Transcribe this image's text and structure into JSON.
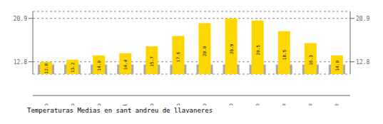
{
  "chart_data": {
    "type": "bar",
    "title": "Temperaturas Medias en sant andreu de llavaneres",
    "categories": [
      "Enero",
      "Febrero",
      "Marzo",
      "Abril",
      "Mayo",
      "Junio",
      "Julio",
      "Agosto",
      "Septiembre",
      "Octubre",
      "Noviembre",
      "Diciembre"
    ],
    "series": [
      {
        "color": "#AAAAAA",
        "values": [
          12.3,
          12.3,
          12.3,
          12.3,
          12.3,
          12.3,
          12.3,
          12.3,
          12.3,
          12.3,
          12.3,
          12.3
        ]
      },
      {
        "color": "#FFD700",
        "values": [
          12.8,
          13.2,
          14.0,
          14.4,
          15.7,
          17.6,
          20.0,
          20.9,
          20.5,
          18.5,
          16.3,
          14.0
        ],
        "value_labels": [
          "12.8",
          "13.2",
          "14.0",
          "14.4",
          "15.7",
          "17.6",
          "20.0",
          "20.9",
          "20.5",
          "18.5",
          "16.3",
          "14.0"
        ],
        "data_labels": true
      }
    ],
    "ylim": [
      10.5,
      22.2
    ],
    "yticks": [
      12.8,
      20.9
    ],
    "y2lim": [
      10.5,
      22.2
    ],
    "y2ticks": [
      12.8,
      20.9
    ],
    "grid": true
  }
}
